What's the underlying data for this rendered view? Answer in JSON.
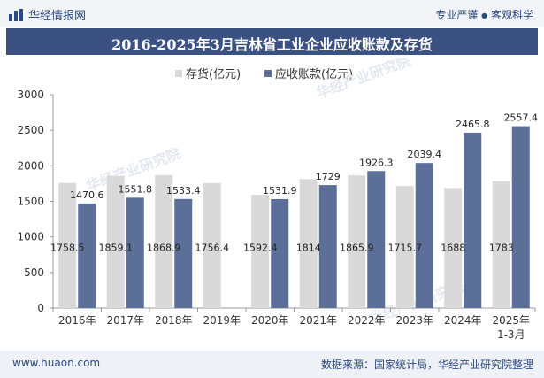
{
  "header": {
    "logo_text": "华经情报网",
    "tagline_left": "专业严谨",
    "tagline_sep": "●",
    "tagline_right": "客观科学"
  },
  "watermark": "华经产业研究院",
  "footer": {
    "website": "www.huaon.com",
    "source": "数据来源：国家统计局，华经产业研究院整理"
  },
  "colors": {
    "inventory": "#d9d9d9",
    "receivables": "#5c6f98",
    "title_bg": "#3b5181",
    "brand": "#2c4a82"
  },
  "chart_data": {
    "type": "bar",
    "title": "2016-2025年3月吉林省工业企业应收账款及存货",
    "xlabel": "",
    "ylabel": "",
    "categories": [
      "2016年",
      "2017年",
      "2018年",
      "2019年",
      "2020年",
      "2021年",
      "2022年",
      "2023年",
      "2024年",
      "2025年\n1-3月"
    ],
    "series": [
      {
        "name": "存货(亿元)",
        "values": [
          1758.5,
          1859.1,
          1868.9,
          1756.4,
          1592.4,
          1814,
          1865.9,
          1715.7,
          1688,
          1783
        ]
      },
      {
        "name": "应收账款(亿元)",
        "values": [
          1470.6,
          1551.8,
          1533.4,
          null,
          1531.9,
          1729,
          1926.3,
          2039.4,
          2465.8,
          2557.4
        ]
      }
    ],
    "ylim": [
      0,
      3000
    ],
    "yticks": [
      0,
      500,
      1000,
      1500,
      2000,
      2500,
      3000
    ],
    "legend": "top-center",
    "grid": false
  }
}
